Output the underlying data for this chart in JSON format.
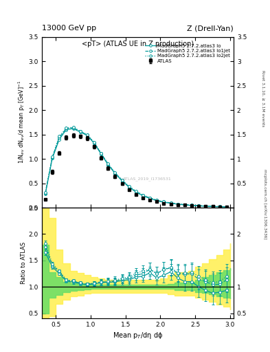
{
  "title_top": "13000 GeV pp",
  "title_right": "Z (Drell-Yan)",
  "plot_title": "<pT> (ATLAS UE in Z production)",
  "ylabel_main": "1/N$_{ev}$ dN$_{ev}$/d mean p$_{T}$ [GeV]$^{-1}$",
  "ylabel_ratio": "Ratio to ATLAS",
  "xlabel": "Mean p$_{T}$/dη dϕ",
  "ylim_main": [
    0,
    3.5
  ],
  "ylim_ratio": [
    0.4,
    2.5
  ],
  "xlim": [
    0.3,
    3.05
  ],
  "watermark": "ATLAS_2019_I1736531",
  "right_label": "mcplots.cern.ch [arXiv:1306.3436]",
  "right_label2": "Rivet 3.1.10, ≥ 3.1M events",
  "teal": "#009999",
  "atlas_data_x": [
    0.35,
    0.45,
    0.55,
    0.65,
    0.75,
    0.85,
    0.95,
    1.05,
    1.15,
    1.25,
    1.35,
    1.45,
    1.55,
    1.65,
    1.75,
    1.85,
    1.95,
    2.05,
    2.15,
    2.25,
    2.35,
    2.45,
    2.55,
    2.65,
    2.75,
    2.85,
    2.95
  ],
  "atlas_data_y": [
    0.17,
    0.73,
    1.12,
    1.44,
    1.48,
    1.46,
    1.42,
    1.25,
    1.02,
    0.81,
    0.64,
    0.49,
    0.37,
    0.27,
    0.2,
    0.15,
    0.12,
    0.09,
    0.07,
    0.06,
    0.05,
    0.04,
    0.035,
    0.03,
    0.025,
    0.02,
    0.015
  ],
  "atlas_data_yerr": [
    0.02,
    0.04,
    0.04,
    0.04,
    0.04,
    0.04,
    0.04,
    0.04,
    0.04,
    0.03,
    0.03,
    0.02,
    0.02,
    0.02,
    0.015,
    0.01,
    0.01,
    0.008,
    0.006,
    0.005,
    0.004,
    0.004,
    0.003,
    0.003,
    0.002,
    0.002,
    0.002
  ],
  "mc_x": [
    0.35,
    0.45,
    0.55,
    0.65,
    0.75,
    0.85,
    0.95,
    1.05,
    1.15,
    1.25,
    1.35,
    1.45,
    1.55,
    1.65,
    1.75,
    1.85,
    1.95,
    2.05,
    2.15,
    2.25,
    2.35,
    2.45,
    2.55,
    2.65,
    2.75,
    2.85,
    2.95
  ],
  "lo_y": [
    0.28,
    1.01,
    1.4,
    1.6,
    1.62,
    1.55,
    1.48,
    1.32,
    1.1,
    0.88,
    0.7,
    0.55,
    0.42,
    0.32,
    0.24,
    0.19,
    0.14,
    0.11,
    0.09,
    0.07,
    0.055,
    0.044,
    0.035,
    0.028,
    0.022,
    0.018,
    0.014
  ],
  "lo1jet_y": [
    0.3,
    1.03,
    1.44,
    1.62,
    1.64,
    1.56,
    1.49,
    1.33,
    1.11,
    0.89,
    0.71,
    0.56,
    0.43,
    0.33,
    0.25,
    0.2,
    0.15,
    0.12,
    0.095,
    0.075,
    0.062,
    0.05,
    0.04,
    0.033,
    0.026,
    0.021,
    0.017
  ],
  "lo2jet_y": [
    0.31,
    1.05,
    1.46,
    1.63,
    1.65,
    1.57,
    1.5,
    1.34,
    1.12,
    0.9,
    0.72,
    0.57,
    0.44,
    0.34,
    0.26,
    0.2,
    0.15,
    0.12,
    0.096,
    0.076,
    0.063,
    0.051,
    0.042,
    0.034,
    0.027,
    0.022,
    0.018
  ],
  "ratio_lo": [
    1.65,
    1.38,
    1.25,
    1.11,
    1.09,
    1.06,
    1.04,
    1.056,
    1.078,
    1.086,
    1.094,
    1.12,
    1.135,
    1.185,
    1.2,
    1.267,
    1.167,
    1.222,
    1.286,
    1.167,
    1.1,
    1.1,
    1.0,
    0.933,
    0.88,
    0.9,
    0.933
  ],
  "ratio_lo_err": [
    0.05,
    0.04,
    0.03,
    0.03,
    0.03,
    0.03,
    0.03,
    0.04,
    0.05,
    0.06,
    0.07,
    0.08,
    0.09,
    0.1,
    0.11,
    0.12,
    0.13,
    0.14,
    0.15,
    0.16,
    0.17,
    0.18,
    0.19,
    0.2,
    0.21,
    0.22,
    0.23
  ],
  "ratio_lo1jet": [
    1.76,
    1.41,
    1.286,
    1.125,
    1.108,
    1.068,
    1.049,
    1.064,
    1.088,
    1.099,
    1.109,
    1.143,
    1.162,
    1.222,
    1.25,
    1.333,
    1.25,
    1.333,
    1.357,
    1.25,
    1.24,
    1.25,
    1.143,
    1.1,
    1.04,
    1.05,
    1.133
  ],
  "ratio_lo1_err": [
    0.05,
    0.04,
    0.03,
    0.03,
    0.03,
    0.03,
    0.03,
    0.04,
    0.05,
    0.06,
    0.07,
    0.08,
    0.09,
    0.1,
    0.11,
    0.12,
    0.13,
    0.14,
    0.15,
    0.16,
    0.17,
    0.18,
    0.19,
    0.2,
    0.21,
    0.22,
    0.23
  ],
  "ratio_lo2jet": [
    1.82,
    1.438,
    1.304,
    1.132,
    1.114,
    1.075,
    1.056,
    1.072,
    1.098,
    1.111,
    1.125,
    1.163,
    1.189,
    1.259,
    1.3,
    1.333,
    1.25,
    1.333,
    1.371,
    1.267,
    1.26,
    1.275,
    1.2,
    1.133,
    1.08,
    1.1,
    1.2
  ],
  "ratio_lo2_err": [
    0.05,
    0.04,
    0.03,
    0.03,
    0.03,
    0.03,
    0.03,
    0.04,
    0.05,
    0.06,
    0.07,
    0.08,
    0.09,
    0.1,
    0.11,
    0.12,
    0.13,
    0.14,
    0.15,
    0.16,
    0.17,
    0.18,
    0.19,
    0.2,
    0.21,
    0.22,
    0.23
  ],
  "band_edges": [
    0.3,
    0.4,
    0.5,
    0.6,
    0.7,
    0.8,
    0.9,
    1.0,
    1.1,
    1.2,
    1.3,
    1.4,
    1.5,
    1.6,
    1.7,
    1.8,
    1.9,
    2.0,
    2.1,
    2.2,
    2.3,
    2.4,
    2.5,
    2.6,
    2.7,
    2.8,
    2.9,
    3.0
  ],
  "green_band_lo": [
    0.5,
    0.8,
    0.85,
    0.9,
    0.93,
    0.94,
    0.95,
    0.96,
    0.96,
    0.96,
    0.96,
    0.96,
    0.96,
    0.96,
    0.96,
    0.96,
    0.96,
    0.96,
    0.96,
    0.94,
    0.94,
    0.94,
    0.9,
    0.88,
    0.86,
    0.82,
    0.8,
    0.78
  ],
  "green_band_hi": [
    1.8,
    1.28,
    1.18,
    1.1,
    1.07,
    1.06,
    1.05,
    1.04,
    1.04,
    1.04,
    1.04,
    1.04,
    1.04,
    1.04,
    1.04,
    1.04,
    1.04,
    1.04,
    1.06,
    1.08,
    1.08,
    1.1,
    1.14,
    1.18,
    1.22,
    1.28,
    1.32,
    1.36
  ],
  "yellow_band_lo": [
    0.4,
    0.45,
    0.68,
    0.76,
    0.82,
    0.84,
    0.87,
    0.89,
    0.89,
    0.89,
    0.89,
    0.89,
    0.89,
    0.89,
    0.89,
    0.89,
    0.89,
    0.89,
    0.86,
    0.84,
    0.84,
    0.84,
    0.8,
    0.76,
    0.72,
    0.66,
    0.62,
    0.58
  ],
  "yellow_band_hi": [
    2.5,
    2.3,
    1.7,
    1.45,
    1.3,
    1.26,
    1.22,
    1.18,
    1.16,
    1.14,
    1.14,
    1.14,
    1.14,
    1.14,
    1.14,
    1.14,
    1.14,
    1.16,
    1.22,
    1.28,
    1.28,
    1.3,
    1.38,
    1.44,
    1.52,
    1.6,
    1.7,
    1.82
  ],
  "yticks_main": [
    0,
    0.5,
    1.0,
    1.5,
    2.0,
    2.5,
    3.0,
    3.5
  ],
  "yticks_ratio": [
    0.5,
    1.0,
    1.5,
    2.0,
    2.5
  ]
}
